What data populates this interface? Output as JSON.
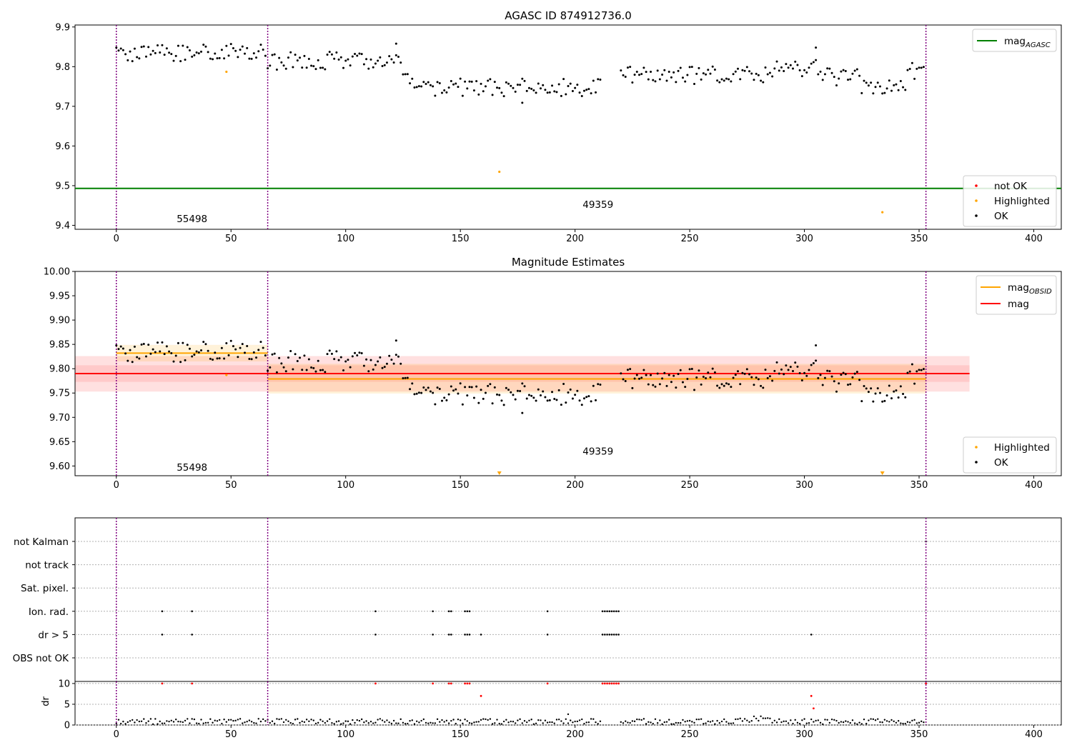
{
  "chart_data": [
    {
      "type": "scatter",
      "title": "AGASC ID 874912736.0",
      "xlim": [
        -18,
        412
      ],
      "ylim": [
        9.39,
        9.905
      ],
      "xticks": [
        0,
        50,
        100,
        150,
        200,
        250,
        300,
        350,
        400
      ],
      "yticks": [
        9.4,
        9.5,
        9.6,
        9.7,
        9.8,
        9.9
      ],
      "ytick_decimals": 1,
      "grid": false,
      "vlines": [
        0,
        66,
        353
      ],
      "obsid_labels": [
        {
          "text": "55498",
          "x": 33,
          "y": 9.408
        },
        {
          "text": "49359",
          "x": 210,
          "y": 9.444
        }
      ],
      "hlines": [
        {
          "name": "mag_AGASC",
          "y": 9.493,
          "x_range": [
            -18,
            412
          ],
          "color": "#008000"
        }
      ],
      "highlighted_points": [
        {
          "x": 48,
          "y": 9.787
        },
        {
          "x": 167,
          "y": 9.535
        },
        {
          "x": 334,
          "y": 9.433
        }
      ],
      "legend_lines": {
        "position": "top-right",
        "entries": [
          {
            "label": "mag",
            "sub": "AGASC",
            "color": "#008000"
          }
        ]
      },
      "legend_points": {
        "position": "lower-right",
        "entries": [
          {
            "label": "not OK",
            "color": "#ff0000"
          },
          {
            "label": "Highlighted",
            "color": "#ffa500"
          },
          {
            "label": "OK",
            "color": "#000000"
          }
        ]
      }
    },
    {
      "type": "scatter",
      "title": "Magnitude Estimates",
      "xlim": [
        -18,
        412
      ],
      "ylim": [
        9.58,
        10.0
      ],
      "xticks": [
        0,
        50,
        100,
        150,
        200,
        250,
        300,
        350,
        400
      ],
      "yticks": [
        9.6,
        9.65,
        9.7,
        9.75,
        9.8,
        9.85,
        9.9,
        9.95,
        10.0
      ],
      "ytick_decimals": 2,
      "grid": false,
      "vlines": [
        0,
        66,
        353
      ],
      "obsid_labels": [
        {
          "text": "55498",
          "x": 33,
          "y": 9.59
        },
        {
          "text": "49359",
          "x": 210,
          "y": 9.623
        }
      ],
      "bands": [
        {
          "name": "mag",
          "y0": 9.753,
          "y1": 9.826,
          "x_range": [
            -18,
            372
          ],
          "color": "#ff0000",
          "opacity": 0.12
        },
        {
          "name": "mag",
          "y0": 9.773,
          "y1": 9.807,
          "x_range": [
            -18,
            372
          ],
          "color": "#ff0000",
          "opacity": 0.1
        },
        {
          "name": "mag_OBSID",
          "y0": 9.815,
          "y1": 9.849,
          "x_range": [
            0,
            66
          ],
          "color": "#ffa500",
          "opacity": 0.15
        },
        {
          "name": "mag_OBSID",
          "y0": 9.749,
          "y1": 9.81,
          "x_range": [
            66,
            353
          ],
          "color": "#ffa500",
          "opacity": 0.15
        }
      ],
      "hlines": [
        {
          "name": "mag_OBSID",
          "y": 9.832,
          "x_range": [
            0,
            66
          ],
          "color": "#ffa500"
        },
        {
          "name": "mag_OBSID",
          "y": 9.779,
          "x_range": [
            66,
            353
          ],
          "color": "#ffa500"
        },
        {
          "name": "mag",
          "y": 9.79,
          "x_range": [
            -18,
            372
          ],
          "color": "#ff0000"
        }
      ],
      "highlighted_points": [
        {
          "x": 48,
          "y": 9.787
        }
      ],
      "offscale_markers": [
        {
          "x": 167
        },
        {
          "x": 334
        }
      ],
      "legend_lines": {
        "position": "top-right",
        "entries": [
          {
            "label": "mag",
            "sub": "OBSID",
            "color": "#ffa500"
          },
          {
            "label": "mag",
            "sub": "",
            "color": "#ff0000"
          }
        ]
      },
      "legend_points": {
        "position": "lower-right",
        "entries": [
          {
            "label": "Highlighted",
            "color": "#ffa500"
          },
          {
            "label": "OK",
            "color": "#000000"
          }
        ]
      }
    },
    {
      "type": "scatter",
      "title": "",
      "xlim": [
        -18,
        412
      ],
      "xticks": [
        0,
        50,
        100,
        150,
        200,
        250,
        300,
        350,
        400
      ],
      "vlines": [
        0,
        66,
        353
      ],
      "flag_rows": [
        "not Kalman",
        "not track",
        "Sat. pixel.",
        "Ion. rad.",
        "dr > 5",
        "OBS not OK"
      ],
      "flags": {
        "not Kalman": [
          353
        ],
        "not track": [],
        "Sat. pixel.": [],
        "Ion. rad.": [
          20,
          33,
          113,
          138,
          145,
          146,
          152,
          153,
          154,
          188,
          212,
          213,
          214,
          215,
          216,
          217,
          218,
          219
        ],
        "dr > 5": [
          20,
          33,
          113,
          138,
          145,
          146,
          152,
          153,
          154,
          159,
          188,
          212,
          213,
          214,
          215,
          216,
          217,
          218,
          219,
          303
        ],
        "OBS not OK": []
      },
      "dr_ylabel": "dr",
      "dr_ylim": [
        0,
        10.5
      ],
      "dr_yticks": [
        0,
        5,
        10
      ],
      "dr_high_points": [
        {
          "x": 20,
          "y": 10
        },
        {
          "x": 33,
          "y": 10
        },
        {
          "x": 113,
          "y": 10
        },
        {
          "x": 138,
          "y": 10
        },
        {
          "x": 145,
          "y": 10
        },
        {
          "x": 146,
          "y": 10
        },
        {
          "x": 152,
          "y": 10
        },
        {
          "x": 153,
          "y": 10
        },
        {
          "x": 154,
          "y": 10
        },
        {
          "x": 159,
          "y": 7
        },
        {
          "x": 188,
          "y": 10
        },
        {
          "x": 212,
          "y": 10
        },
        {
          "x": 213,
          "y": 10
        },
        {
          "x": 214,
          "y": 10
        },
        {
          "x": 215,
          "y": 10
        },
        {
          "x": 216,
          "y": 10
        },
        {
          "x": 217,
          "y": 10
        },
        {
          "x": 218,
          "y": 10
        },
        {
          "x": 219,
          "y": 10
        },
        {
          "x": 303,
          "y": 7
        },
        {
          "x": 304,
          "y": 4
        },
        {
          "x": 353,
          "y": 10
        }
      ]
    }
  ]
}
